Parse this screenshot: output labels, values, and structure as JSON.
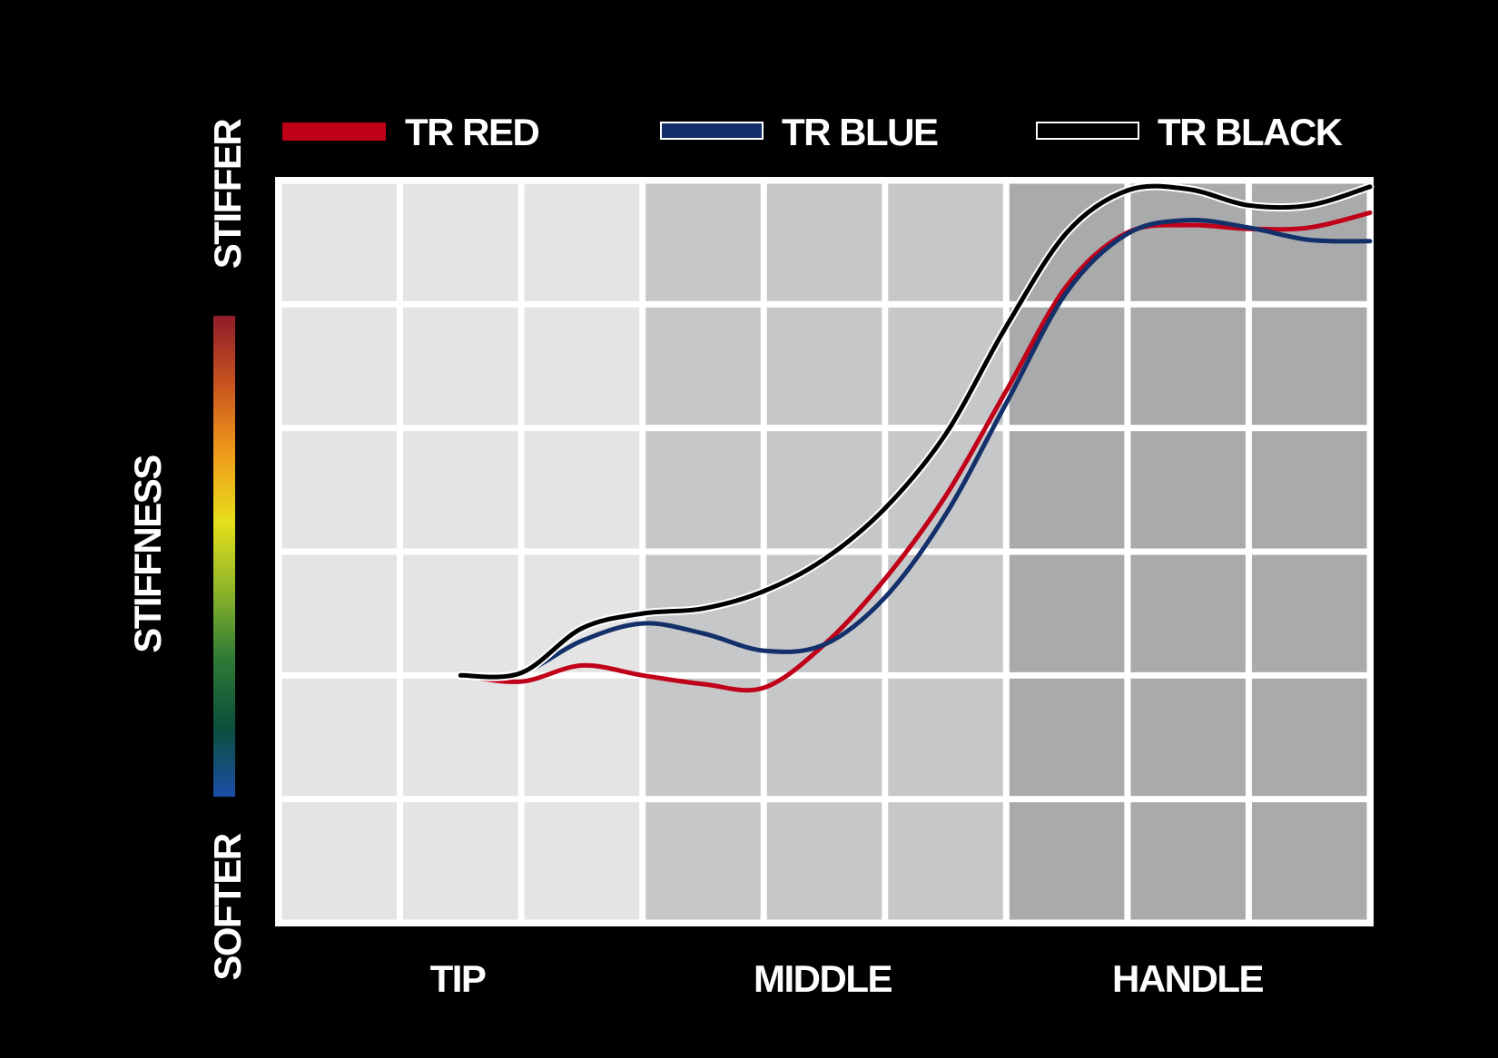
{
  "chart_data": {
    "type": "line",
    "x": [
      1.5,
      2.0,
      2.5,
      3.0,
      3.5,
      4.0,
      4.5,
      5.0,
      5.5,
      6.0,
      6.5,
      7.0,
      7.5,
      8.0,
      8.5,
      9.0
    ],
    "x_range": [
      0,
      9
    ],
    "y_range": [
      0,
      6
    ],
    "series": [
      {
        "name": "TR RED",
        "color": "#c00018",
        "values": [
          2.0,
          1.95,
          2.08,
          2.0,
          1.93,
          1.9,
          2.25,
          2.78,
          3.45,
          4.3,
          5.15,
          5.58,
          5.64,
          5.61,
          5.62,
          5.74
        ]
      },
      {
        "name": "TR BLUE",
        "color": "#14306a",
        "values": [
          2.0,
          2.02,
          2.28,
          2.42,
          2.34,
          2.2,
          2.25,
          2.63,
          3.3,
          4.2,
          5.1,
          5.57,
          5.68,
          5.62,
          5.52,
          5.51
        ]
      },
      {
        "name": "TR BLACK",
        "color": "#000000",
        "values": [
          2.0,
          2.02,
          2.38,
          2.5,
          2.54,
          2.68,
          2.94,
          3.35,
          3.95,
          4.82,
          5.58,
          5.92,
          5.93,
          5.8,
          5.8,
          5.95
        ]
      }
    ],
    "ylabel": "STIFFNESS",
    "y_top_label": "STIFFER",
    "y_bottom_label": "SOFTER",
    "zone_labels": [
      "TIP",
      "MIDDLE",
      "HANDLE"
    ],
    "grid": true,
    "legend_placement": "top",
    "zone_colors": [
      "#e4e4e4",
      "#c6c7c8",
      "#a8aaab"
    ],
    "gradient_colors": [
      "#8e1c2a",
      "#c8541f",
      "#f09a1a",
      "#e6df1a",
      "#8db52a",
      "#2e7a35",
      "#0b4f3a",
      "#1a4fa8"
    ]
  }
}
